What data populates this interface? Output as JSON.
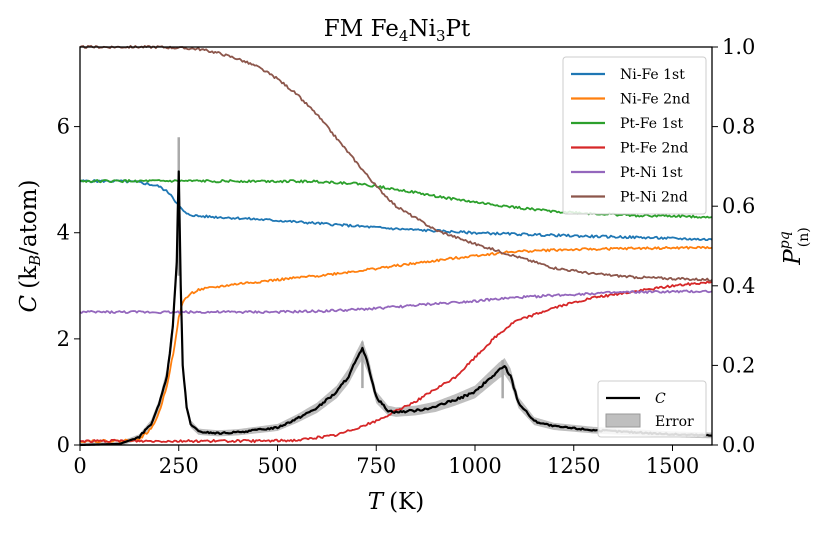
{
  "chart_data": {
    "type": "line",
    "title": "FM Fe4Ni3Pt",
    "title_parts": {
      "pre": "FM Fe",
      "s1": "4",
      "mid": "Ni",
      "s2": "3",
      "post": "Pt"
    },
    "xlabel": {
      "var": "T",
      "unit": "(K)"
    },
    "ylabel_left": {
      "var": "C",
      "unit_pre": "(k",
      "unit_sub": "B",
      "unit_post": "/atom)"
    },
    "ylabel_right": {
      "base": "P",
      "sup": "pq",
      "sub": "(n)"
    },
    "xlim": [
      0,
      1600
    ],
    "ylim_left": [
      0,
      7.5
    ],
    "ylim_right": [
      0,
      1.0
    ],
    "xticks": [
      "0",
      "250",
      "500",
      "750",
      "1000",
      "1250",
      "1500"
    ],
    "yticks_left": [
      "0",
      "2",
      "4",
      "6"
    ],
    "yticks_right": [
      "0.0",
      "0.2",
      "0.4",
      "0.6",
      "0.8",
      "1.0"
    ],
    "grid": false,
    "legend_position": "top-right",
    "legend2_position": "bottom-right",
    "series": [
      {
        "name": "Ni-Fe 1st",
        "axis": "right",
        "color": "#1f77b4",
        "x": [
          0,
          100,
          150,
          200,
          230,
          250,
          270,
          300,
          400,
          500,
          600,
          700,
          800,
          900,
          1000,
          1100,
          1200,
          1300,
          1400,
          1500,
          1600
        ],
        "y": [
          0.663,
          0.663,
          0.66,
          0.65,
          0.63,
          0.6,
          0.58,
          0.575,
          0.57,
          0.564,
          0.557,
          0.55,
          0.543,
          0.538,
          0.533,
          0.53,
          0.527,
          0.524,
          0.522,
          0.519,
          0.516
        ]
      },
      {
        "name": "Ni-Fe 2nd",
        "axis": "right",
        "color": "#ff7f0e",
        "x": [
          0,
          100,
          150,
          180,
          200,
          220,
          240,
          250,
          260,
          280,
          300,
          400,
          500,
          600,
          700,
          800,
          900,
          1000,
          1100,
          1200,
          1300,
          1400,
          1500,
          1600
        ],
        "y": [
          0.01,
          0.01,
          0.015,
          0.04,
          0.08,
          0.15,
          0.25,
          0.32,
          0.36,
          0.38,
          0.39,
          0.405,
          0.415,
          0.425,
          0.437,
          0.45,
          0.463,
          0.476,
          0.486,
          0.49,
          0.492,
          0.494,
          0.495,
          0.496
        ]
      },
      {
        "name": "Pt-Fe 1st",
        "axis": "right",
        "color": "#2ca02c",
        "x": [
          0,
          300,
          500,
          600,
          700,
          800,
          900,
          1000,
          1100,
          1200,
          1300,
          1400,
          1500,
          1600
        ],
        "y": [
          0.663,
          0.663,
          0.663,
          0.662,
          0.657,
          0.643,
          0.625,
          0.61,
          0.597,
          0.587,
          0.581,
          0.577,
          0.575,
          0.573
        ]
      },
      {
        "name": "Pt-Fe 2nd",
        "axis": "right",
        "color": "#d62728",
        "x": [
          0,
          450,
          550,
          650,
          750,
          850,
          950,
          1000,
          1050,
          1100,
          1200,
          1300,
          1400,
          1500,
          1600
        ],
        "y": [
          0.01,
          0.01,
          0.012,
          0.025,
          0.06,
          0.11,
          0.17,
          0.22,
          0.27,
          0.31,
          0.345,
          0.37,
          0.385,
          0.4,
          0.41
        ]
      },
      {
        "name": "Pt-Ni 1st",
        "axis": "right",
        "color": "#9467bd",
        "x": [
          0,
          500,
          600,
          700,
          800,
          900,
          1000,
          1100,
          1200,
          1300,
          1400,
          1500,
          1600
        ],
        "y": [
          0.334,
          0.334,
          0.336,
          0.34,
          0.347,
          0.355,
          0.362,
          0.37,
          0.376,
          0.381,
          0.384,
          0.385,
          0.386
        ]
      },
      {
        "name": "Pt-Ni 2nd",
        "axis": "right",
        "color": "#8c564b",
        "x": [
          0,
          200,
          300,
          350,
          400,
          450,
          500,
          550,
          600,
          650,
          700,
          750,
          800,
          900,
          1000,
          1100,
          1200,
          1300,
          1400,
          1500,
          1600
        ],
        "y": [
          1.0,
          1.0,
          0.995,
          0.985,
          0.97,
          0.95,
          0.92,
          0.88,
          0.83,
          0.77,
          0.71,
          0.65,
          0.6,
          0.54,
          0.505,
          0.475,
          0.445,
          0.43,
          0.422,
          0.418,
          0.415
        ]
      },
      {
        "name": "C",
        "axis": "left",
        "color": "#000000",
        "x": [
          0,
          100,
          150,
          180,
          200,
          220,
          235,
          245,
          250,
          255,
          260,
          270,
          280,
          300,
          350,
          400,
          500,
          550,
          600,
          650,
          680,
          700,
          715,
          730,
          750,
          780,
          800,
          850,
          900,
          950,
          1000,
          1030,
          1060,
          1075,
          1090,
          1110,
          1150,
          1200,
          1300,
          1400,
          1500,
          1600
        ],
        "y": [
          0.0,
          0.02,
          0.15,
          0.4,
          0.75,
          1.3,
          2.2,
          3.5,
          5.2,
          3.0,
          1.5,
          0.7,
          0.4,
          0.25,
          0.22,
          0.24,
          0.33,
          0.5,
          0.7,
          1.0,
          1.3,
          1.6,
          1.8,
          1.5,
          0.9,
          0.65,
          0.62,
          0.65,
          0.72,
          0.85,
          1.0,
          1.2,
          1.4,
          1.48,
          1.3,
          0.8,
          0.45,
          0.35,
          0.28,
          0.24,
          0.2,
          0.18
        ]
      }
    ],
    "error_band": {
      "name": "Error",
      "color": "#bfbfbf",
      "axis": "left",
      "x": [
        250,
        715,
        1070
      ],
      "peak_upper": [
        5.8,
        1.95,
        1.6
      ]
    }
  }
}
